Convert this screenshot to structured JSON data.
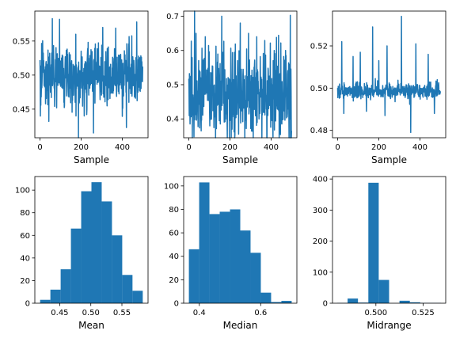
{
  "chart_data": [
    {
      "type": "line",
      "xlabel": "Sample",
      "ylabel": "",
      "color": "#1f77b4",
      "n": 500,
      "center": 0.5,
      "spread": 0.022,
      "extremes": [
        [
          60,
          0.583
        ],
        [
          95,
          0.582
        ],
        [
          175,
          0.44
        ],
        [
          215,
          0.44
        ],
        [
          260,
          0.415
        ],
        [
          305,
          0.57
        ],
        [
          420,
          0.423
        ],
        [
          470,
          0.578
        ]
      ],
      "xlim": [
        -25,
        525
      ],
      "ylim": [
        0.408,
        0.594
      ],
      "xticks": [
        0,
        200,
        400
      ],
      "xticklabels": [
        "0",
        "200",
        "400"
      ],
      "yticks": [
        0.45,
        0.5,
        0.55
      ],
      "yticklabels": [
        "0.45",
        "0.50",
        "0.55"
      ]
    },
    {
      "type": "line",
      "xlabel": "Sample",
      "ylabel": "",
      "color": "#1f77b4",
      "n": 500,
      "center": 0.47,
      "spread": 0.06,
      "extremes": [
        [
          35,
          0.65
        ],
        [
          80,
          0.64
        ],
        [
          160,
          0.7
        ],
        [
          250,
          0.68
        ],
        [
          290,
          0.65
        ],
        [
          330,
          0.64
        ],
        [
          415,
          0.6
        ],
        [
          470,
          0.6
        ],
        [
          60,
          0.365
        ],
        [
          210,
          0.37
        ]
      ],
      "xlim": [
        -25,
        525
      ],
      "ylim": [
        0.345,
        0.715
      ],
      "xticks": [
        0,
        200,
        400
      ],
      "xticklabels": [
        "0",
        "200",
        "400"
      ],
      "yticks": [
        0.4,
        0.5,
        0.6,
        0.7
      ],
      "yticklabels": [
        "0.4",
        "0.5",
        "0.6",
        "0.7"
      ]
    },
    {
      "type": "line",
      "xlabel": "Sample",
      "ylabel": "",
      "color": "#1f77b4",
      "n": 500,
      "center": 0.4985,
      "spread": 0.0018,
      "extremes": [
        [
          20,
          0.522
        ],
        [
          75,
          0.515
        ],
        [
          110,
          0.517
        ],
        [
          170,
          0.529
        ],
        [
          200,
          0.513
        ],
        [
          240,
          0.52
        ],
        [
          310,
          0.534
        ],
        [
          355,
          0.479
        ],
        [
          380,
          0.521
        ],
        [
          440,
          0.516
        ],
        [
          30,
          0.488
        ],
        [
          140,
          0.489
        ],
        [
          230,
          0.487
        ],
        [
          470,
          0.488
        ]
      ],
      "xlim": [
        -25,
        525
      ],
      "ylim": [
        0.4765,
        0.5365
      ],
      "xticks": [
        0,
        200,
        400
      ],
      "xticklabels": [
        "0",
        "200",
        "400"
      ],
      "yticks": [
        0.48,
        0.5,
        0.52
      ],
      "yticklabels": [
        "0.48",
        "0.50",
        "0.52"
      ]
    },
    {
      "type": "bar",
      "xlabel": "Mean",
      "ylabel": "",
      "color": "#1f77b4",
      "bin_edges": [
        0.4185,
        0.435,
        0.4515,
        0.468,
        0.4845,
        0.501,
        0.5175,
        0.534,
        0.5505,
        0.567,
        0.5835
      ],
      "values": [
        3,
        12,
        30,
        66,
        99,
        107,
        90,
        60,
        25,
        11
      ],
      "xlim": [
        0.41,
        0.592
      ],
      "ylim": [
        0,
        112
      ],
      "xticks": [
        0.45,
        0.5,
        0.55
      ],
      "xticklabels": [
        "0.45",
        "0.50",
        "0.55"
      ],
      "yticks": [
        0,
        20,
        40,
        60,
        80,
        100
      ],
      "yticklabels": [
        "0",
        "20",
        "40",
        "60",
        "80",
        "100"
      ]
    },
    {
      "type": "bar",
      "xlabel": "Median",
      "ylabel": "",
      "color": "#1f77b4",
      "bin_edges": [
        0.366,
        0.3995,
        0.433,
        0.4665,
        0.5,
        0.5335,
        0.567,
        0.6005,
        0.634,
        0.6675,
        0.701
      ],
      "values": [
        46,
        103,
        76,
        78,
        80,
        62,
        43,
        9,
        1,
        2
      ],
      "xlim": [
        0.349,
        0.718
      ],
      "ylim": [
        0,
        108
      ],
      "xticks": [
        0.4,
        0.6
      ],
      "xticklabels": [
        "0.4",
        "0.6"
      ],
      "yticks": [
        0,
        20,
        40,
        60,
        80,
        100
      ],
      "yticklabels": [
        "0",
        "20",
        "40",
        "60",
        "80",
        "100"
      ]
    },
    {
      "type": "bar",
      "xlabel": "Midrange",
      "ylabel": "",
      "color": "#1f77b4",
      "bin_edges": [
        0.4795,
        0.485,
        0.4905,
        0.496,
        0.5015,
        0.507,
        0.5125,
        0.518,
        0.5235,
        0.529,
        0.5345
      ],
      "values": [
        1,
        15,
        2,
        388,
        75,
        0,
        8,
        3,
        1,
        1
      ],
      "xlim": [
        0.477,
        0.537
      ],
      "ylim": [
        0,
        408
      ],
      "xticks": [
        0.5,
        0.525
      ],
      "xticklabels": [
        "0.500",
        "0.525"
      ],
      "yticks": [
        0,
        100,
        200,
        300,
        400
      ],
      "yticklabels": [
        "0",
        "100",
        "200",
        "300",
        "400"
      ]
    }
  ]
}
